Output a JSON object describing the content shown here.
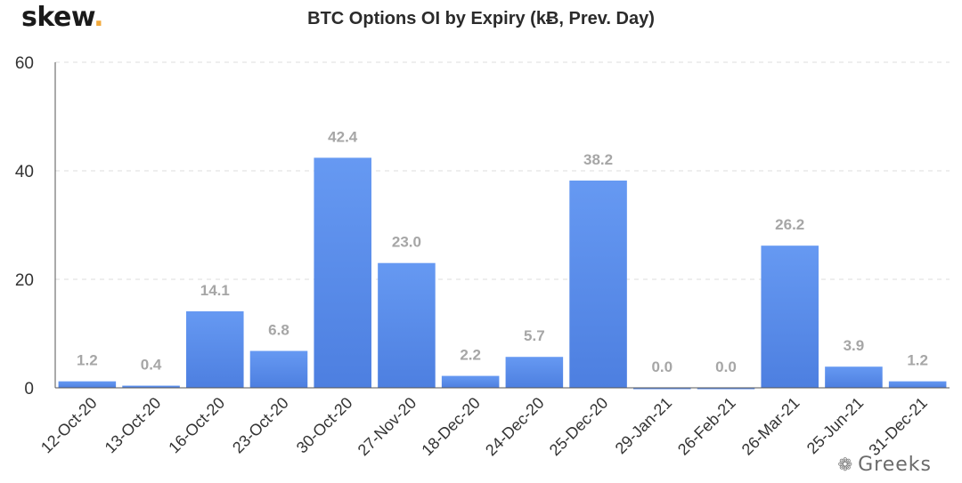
{
  "brand": {
    "name": "skew",
    "dot": "."
  },
  "watermark": {
    "icon": "wechat-icon",
    "text": "Greeks"
  },
  "chart_data": {
    "type": "bar",
    "title": "BTC Options OI by Expiry (kɃ, Prev. Day)",
    "categories": [
      "12-Oct-20",
      "13-Oct-20",
      "16-Oct-20",
      "23-Oct-20",
      "30-Oct-20",
      "27-Nov-20",
      "18-Dec-20",
      "24-Dec-20",
      "25-Dec-20",
      "29-Jan-21",
      "26-Feb-21",
      "26-Mar-21",
      "25-Jun-21",
      "31-Dec-21"
    ],
    "values": [
      1.2,
      0.4,
      14.1,
      6.8,
      42.4,
      23.0,
      2.2,
      5.7,
      38.2,
      0.0,
      0.0,
      26.2,
      3.9,
      1.2
    ],
    "value_labels": [
      "1.2",
      "0.4",
      "14.1",
      "6.8",
      "42.4",
      "23.0",
      "2.2",
      "5.7",
      "38.2",
      "0.0",
      "0.0",
      "26.2",
      "3.9",
      "1.2"
    ],
    "xlabel": "",
    "ylabel": "",
    "ylim": [
      0,
      60
    ],
    "yticks": [
      0,
      20,
      40,
      60
    ],
    "grid": true,
    "legend": "none",
    "colors": {
      "bar_top": "#6699f2",
      "bar_bottom": "#4d7fe0",
      "label": "#a6a6a6",
      "grid": "#dcdcdc",
      "axis": "#333333"
    }
  }
}
